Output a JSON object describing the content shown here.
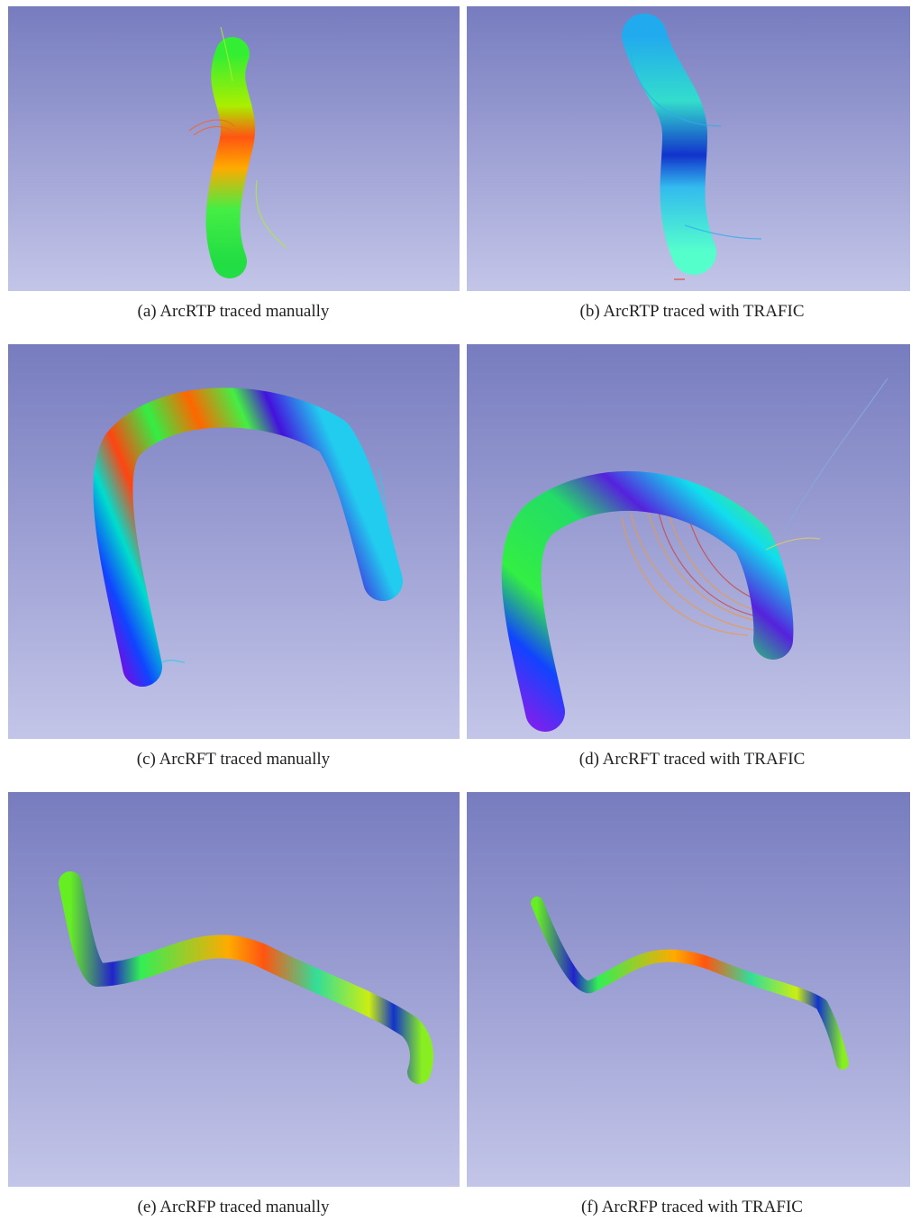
{
  "panels": [
    {
      "caption": "(a) ArcRTP traced manually"
    },
    {
      "caption": "(b) ArcRTP traced with TRAFIC"
    },
    {
      "caption": "(c) ArcRFT traced manually"
    },
    {
      "caption": "(d) ArcRFT traced with TRAFIC"
    },
    {
      "caption": "(e) ArcRFP traced manually"
    },
    {
      "caption": "(f) ArcRFP traced with TRAFIC"
    }
  ]
}
